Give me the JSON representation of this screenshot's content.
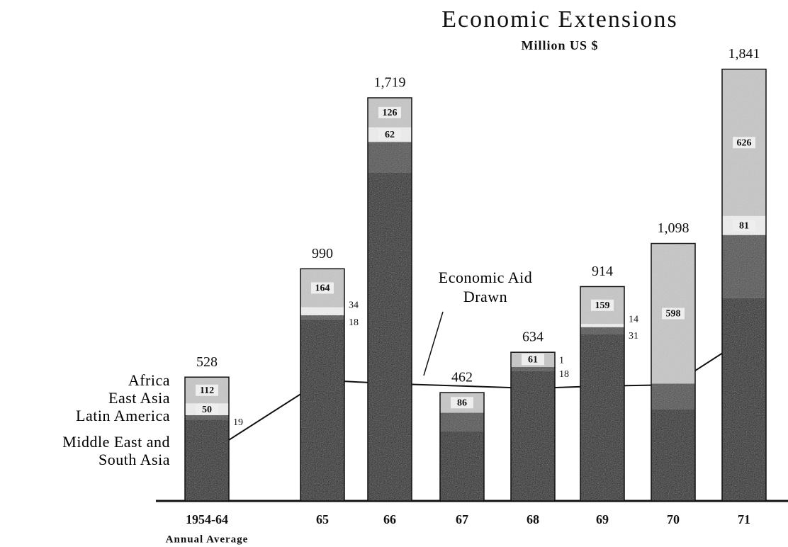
{
  "chart_data": {
    "type": "stacked-bar",
    "title": "Economic Extensions",
    "subtitle": "Million US $",
    "categories": [
      "1954-64",
      "65",
      "66",
      "67",
      "68",
      "69",
      "70",
      "71"
    ],
    "category_note": "Annual Average",
    "ylim": [
      0,
      2000
    ],
    "series": [
      {
        "name": "Middle East and South Asia",
        "color": "#111111",
        "values": [
          347,
          774,
          1401,
          296,
          554,
          710,
          392,
          865
        ],
        "value_labels": [
          null,
          null,
          null,
          null,
          null,
          null,
          null,
          null
        ]
      },
      {
        "name": "Latin America",
        "color": "#4a4a4a",
        "values": [
          19,
          18,
          130,
          80,
          18,
          31,
          108,
          269
        ],
        "value_labels": [
          "19",
          "18",
          null,
          null,
          "18",
          "31",
          null,
          null
        ]
      },
      {
        "name": "East Asia",
        "color": "#f2f2f2",
        "values": [
          50,
          34,
          62,
          0,
          1,
          14,
          0,
          81
        ],
        "value_labels": [
          "50",
          "34",
          "62",
          null,
          "1",
          "14",
          null,
          "81"
        ]
      },
      {
        "name": "Africa",
        "color": "#c8c8c8",
        "values": [
          112,
          164,
          126,
          86,
          61,
          159,
          598,
          626
        ],
        "value_labels": [
          "112",
          "164",
          "126",
          "86",
          "61",
          "159",
          "598",
          "626"
        ]
      }
    ],
    "totals": [
      528,
      990,
      1719,
      462,
      634,
      914,
      1098,
      1841
    ],
    "total_labels": [
      "528",
      "990",
      "1,719",
      "462",
      "634",
      "914",
      "1,098",
      "1,841"
    ],
    "line": {
      "name": "Economic Aid Drawn",
      "color": "#111111",
      "values": [
        200,
        515,
        500,
        490,
        480,
        490,
        495,
        690
      ]
    }
  }
}
